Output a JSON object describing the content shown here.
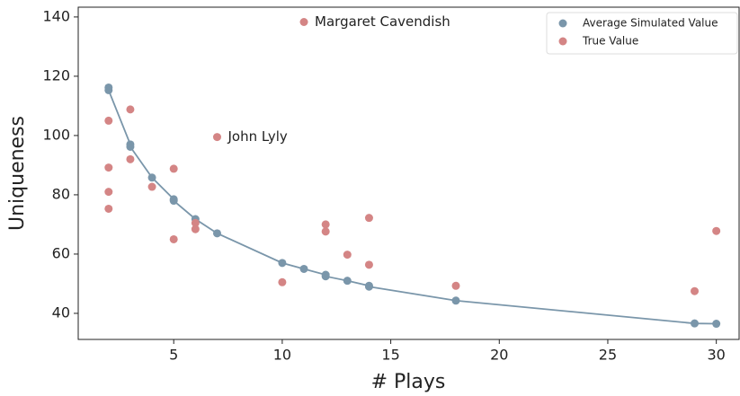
{
  "chart_data": {
    "type": "scatter",
    "xlabel": "# Plays",
    "ylabel": "Uniqueness",
    "xlim": [
      0.6,
      31.05
    ],
    "ylim": [
      31.2,
      143.3
    ],
    "xticks": [
      5,
      10,
      15,
      20,
      25,
      30
    ],
    "yticks": [
      40,
      60,
      80,
      100,
      120,
      140
    ],
    "legend": "upper right",
    "series": [
      {
        "name": "Average Simulated Value",
        "color": "#7a96aa",
        "line": true,
        "x": [
          2,
          2,
          3,
          3,
          4,
          5,
          5,
          6,
          7,
          10,
          11,
          12,
          12,
          13,
          14,
          14,
          18,
          29,
          30
        ],
        "values": [
          116.2,
          115.3,
          97,
          96.2,
          85.8,
          78.5,
          78,
          71.8,
          67,
          57,
          55,
          53,
          52.5,
          51,
          49.3,
          49,
          44.3,
          36.6,
          36.5
        ]
      },
      {
        "name": "True Value",
        "color": "#d48585",
        "line": false,
        "x": [
          2,
          2,
          2,
          2,
          3,
          3,
          4,
          5,
          5,
          6,
          6,
          7,
          10,
          11,
          12,
          12,
          13,
          14,
          14,
          18,
          29,
          30
        ],
        "values": [
          105,
          89.2,
          81,
          75.3,
          108.8,
          92,
          82.7,
          88.8,
          65,
          70.5,
          68.4,
          99.5,
          50.5,
          138.3,
          70,
          67.6,
          59.8,
          72.2,
          56.4,
          49.3,
          47.5,
          67.8
        ]
      }
    ],
    "annotations": [
      {
        "text": "Margaret Cavendish",
        "x": 11,
        "y": 138.3
      },
      {
        "text": "John Lyly",
        "x": 7,
        "y": 99.5
      }
    ]
  }
}
